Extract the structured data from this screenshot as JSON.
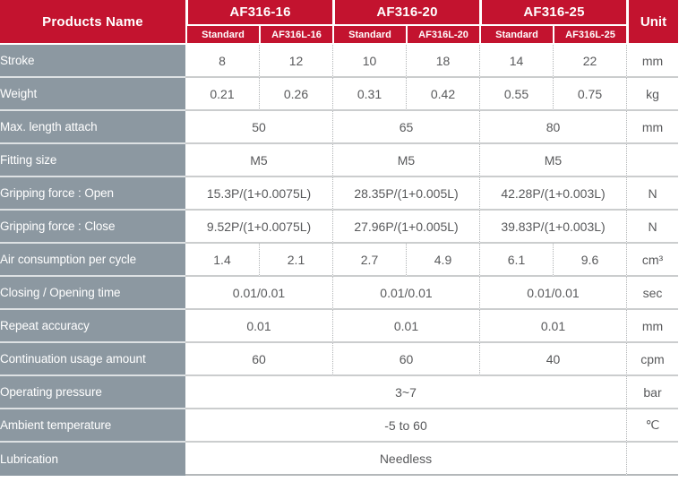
{
  "colors": {
    "header_red": "#c3132f",
    "label_gray": "#8c98a1",
    "value_text": "#58595b"
  },
  "chart_data": {
    "type": "table",
    "header": {
      "products_name": "Products Name",
      "unit": "Unit",
      "groups": [
        {
          "label": "AF316-16",
          "sub": [
            "Standard",
            "AF316L-16"
          ]
        },
        {
          "label": "AF316-20",
          "sub": [
            "Standard",
            "AF316L-20"
          ]
        },
        {
          "label": "AF316-25",
          "sub": [
            "Standard",
            "AF316L-25"
          ]
        }
      ]
    },
    "rows": [
      {
        "label": "Stroke",
        "layout": "six",
        "values": [
          "8",
          "12",
          "10",
          "18",
          "14",
          "22"
        ],
        "unit": "mm"
      },
      {
        "label": "Weight",
        "layout": "six",
        "values": [
          "0.21",
          "0.26",
          "0.31",
          "0.42",
          "0.55",
          "0.75"
        ],
        "unit": "kg"
      },
      {
        "label": "Max. length attach",
        "layout": "grouped",
        "values": [
          "50",
          "65",
          "80"
        ],
        "unit": "mm"
      },
      {
        "label": "Fitting size",
        "layout": "grouped",
        "values": [
          "M5",
          "M5",
          "M5"
        ],
        "unit": ""
      },
      {
        "label": "Gripping force : Open",
        "layout": "grouped",
        "values": [
          "15.3P/(1+0.0075L)",
          "28.35P/(1+0.005L)",
          "42.28P/(1+0.003L)"
        ],
        "unit": "N"
      },
      {
        "label": "Gripping force : Close",
        "layout": "grouped",
        "values": [
          "9.52P/(1+0.0075L)",
          "27.96P/(1+0.005L)",
          "39.83P/(1+0.003L)"
        ],
        "unit": "N"
      },
      {
        "label": "Air consumption per cycle",
        "layout": "six",
        "values": [
          "1.4",
          "2.1",
          "2.7",
          "4.9",
          "6.1",
          "9.6"
        ],
        "unit": "cm³"
      },
      {
        "label": "Closing / Opening time",
        "layout": "grouped",
        "values": [
          "0.01/0.01",
          "0.01/0.01",
          "0.01/0.01"
        ],
        "unit": "sec"
      },
      {
        "label": "Repeat accuracy",
        "layout": "grouped",
        "values": [
          "0.01",
          "0.01",
          "0.01"
        ],
        "unit": "mm"
      },
      {
        "label": "Continuation usage amount",
        "layout": "grouped",
        "values": [
          "60",
          "60",
          "40"
        ],
        "unit": "cpm"
      },
      {
        "label": "Operating pressure",
        "layout": "full",
        "values": [
          "3~7"
        ],
        "unit": "bar"
      },
      {
        "label": "Ambient temperature",
        "layout": "full",
        "values": [
          "-5 to 60"
        ],
        "unit": "℃"
      },
      {
        "label": "Lubrication",
        "layout": "full",
        "values": [
          "Needless"
        ],
        "unit": ""
      }
    ]
  }
}
